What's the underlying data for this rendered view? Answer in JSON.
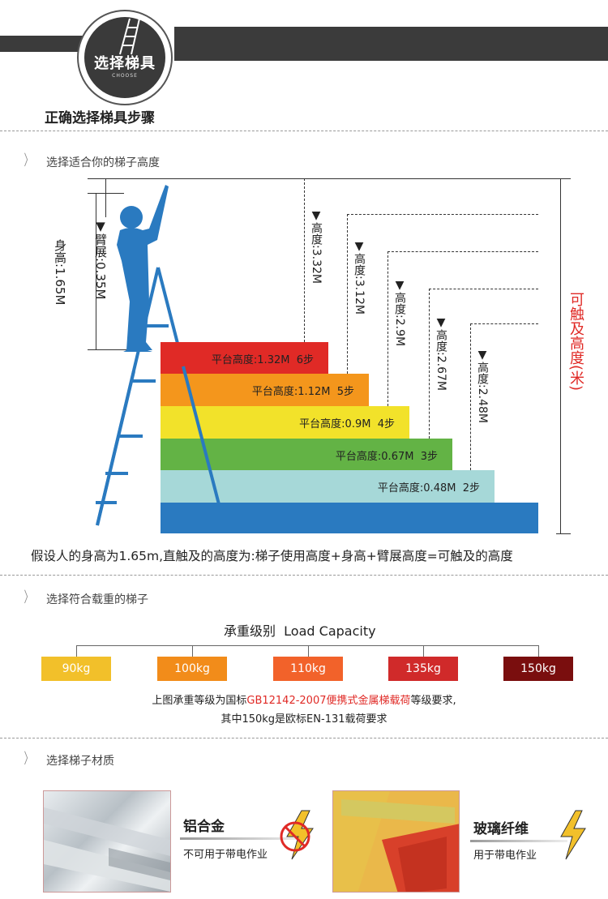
{
  "header": {
    "badge_title": "选择梯具",
    "badge_sub": "CHOOSE",
    "main_title": "正确选择梯具步骤"
  },
  "section1": {
    "title": "选择适合你的梯子高度",
    "body_height": "身高:1.65M",
    "arm_span": "▼臂展:0.35M",
    "heights": [
      "▼高度:3.32M",
      "▼高度:3.12M",
      "▼高度:2.9M",
      "▼高度:2.67M",
      "▼高度:2.48M"
    ],
    "reach_label": "可触及高度(米)",
    "steps": [
      {
        "label": "平台高度:1.32M",
        "count": "6步",
        "color": "#e02a26"
      },
      {
        "label": "平台高度:1.12M",
        "count": "5步",
        "color": "#f4961c"
      },
      {
        "label": "平台高度:0.9M",
        "count": "4步",
        "color": "#f2e22a"
      },
      {
        "label": "平台高度:0.67M",
        "count": "3步",
        "color": "#63b345"
      },
      {
        "label": "平台高度:0.48M",
        "count": "2步",
        "color": "#a6d8d8"
      }
    ],
    "base_color": "#2a7ac0",
    "formula": "假设人的身高为1.65m,直触及的高度为:梯子使用高度+身高+臂展高度=可触及的高度"
  },
  "section2": {
    "title": "选择符合载重的梯子",
    "cap_title": "承重级别  Load Capacity",
    "levels": [
      {
        "label": "90kg",
        "color": "#f2c02a"
      },
      {
        "label": "100kg",
        "color": "#f28c1a"
      },
      {
        "label": "110kg",
        "color": "#f2622a"
      },
      {
        "label": "135kg",
        "color": "#d02a2a"
      },
      {
        "label": "150kg",
        "color": "#7a0e0e"
      }
    ],
    "note_pre": "上图承重等级为国标",
    "note_red": "GB12142-2007便携式金属梯载荷",
    "note_post": "等级要求,",
    "note2": "其中150kg是欧标EN-131载荷要求"
  },
  "section3": {
    "title": "选择梯子材质",
    "mat1_name": "铝合金",
    "mat1_note": "不可用于带电作业",
    "mat2_name": "玻璃纤维",
    "mat2_note": "用于带电作业"
  }
}
